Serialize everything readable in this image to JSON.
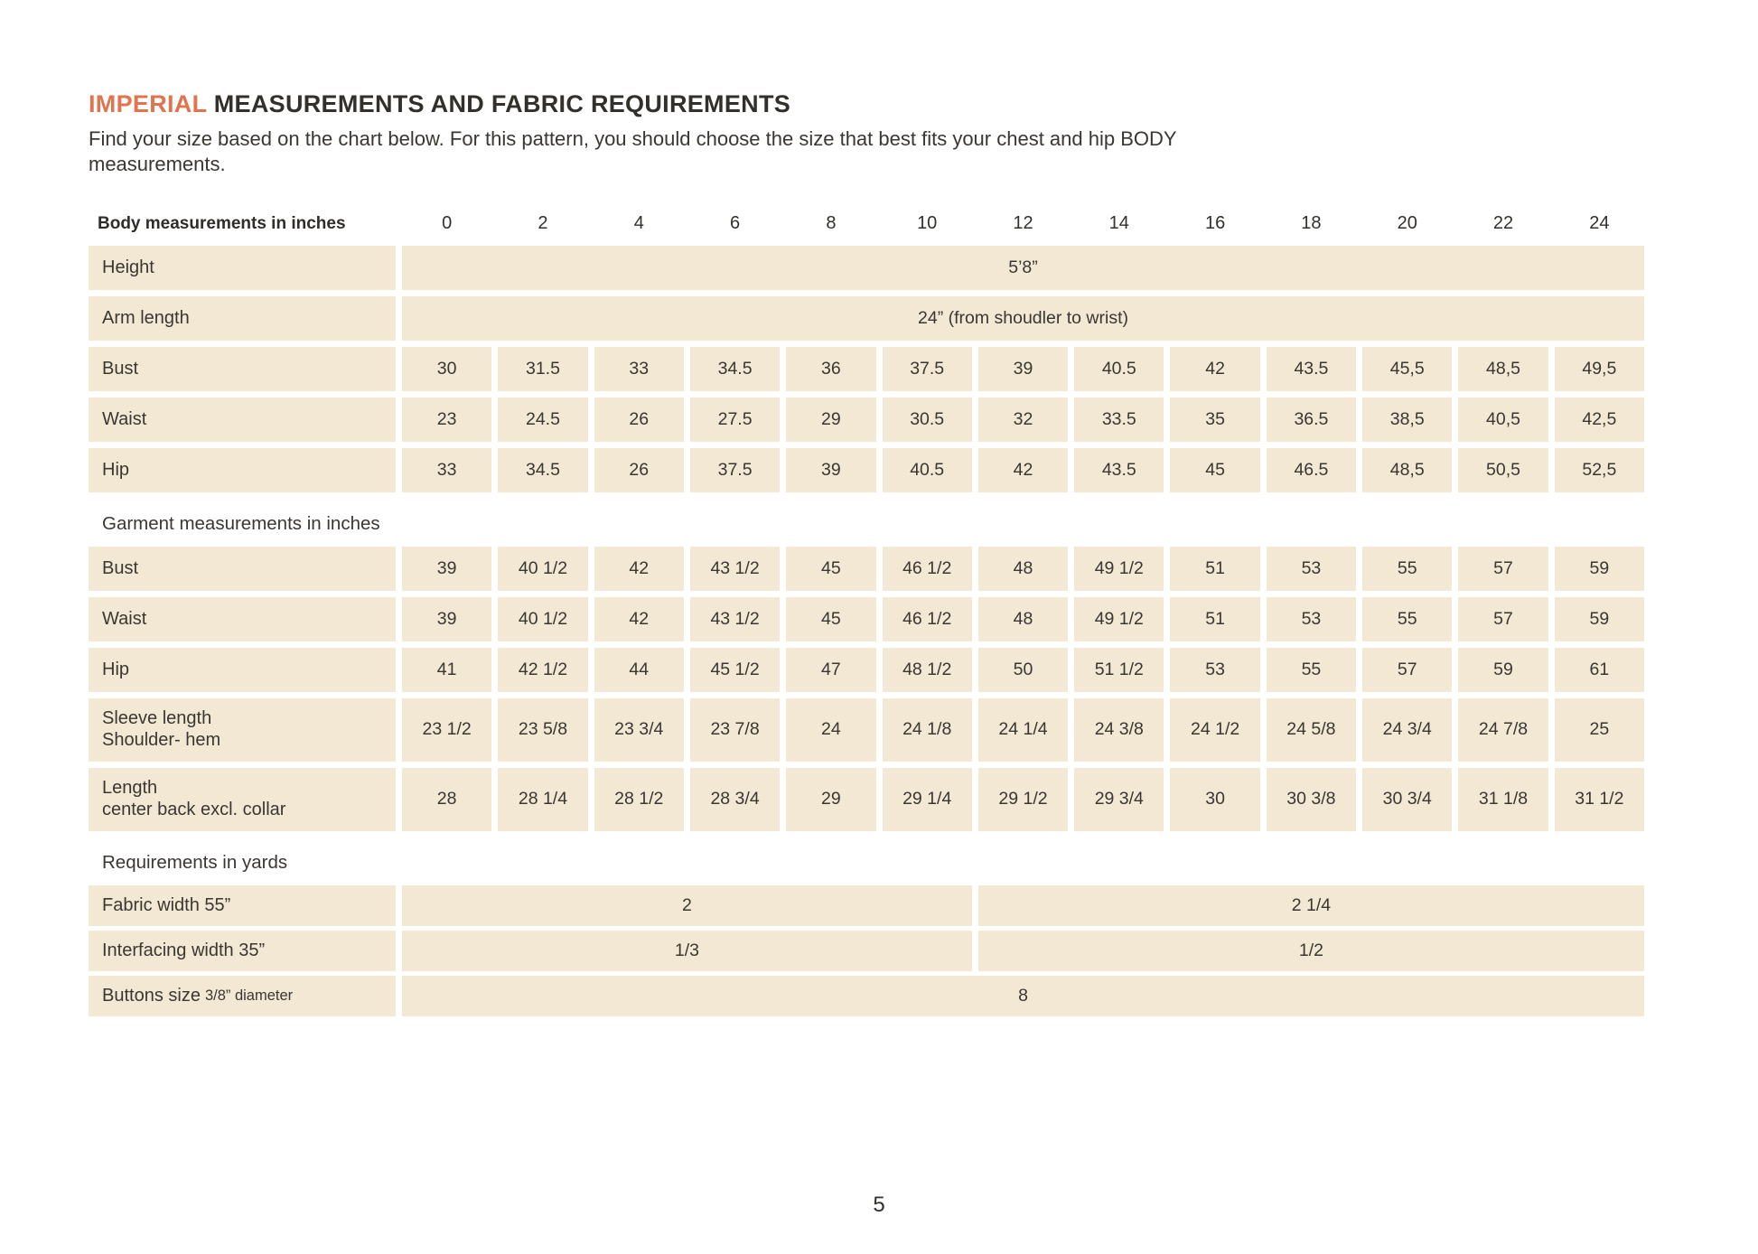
{
  "page": {
    "title_accent": "IMPERIAL",
    "title_rest": "MEASUREMENTS AND FABRIC REQUIREMENTS",
    "subtitle_line1": "Find your size based on the chart below. For this pattern, you should choose the size that best fits your chest and hip BODY",
    "subtitle_line2": "measurements.",
    "page_number": "5"
  },
  "colors": {
    "accent": "#E0744E",
    "cell_bg": "#F2E8D4",
    "text": "#35322E"
  },
  "table": {
    "header_label": "Body measurements in inches",
    "sizes": [
      "0",
      "2",
      "4",
      "6",
      "8",
      "10",
      "12",
      "14",
      "16",
      "18",
      "20",
      "22",
      "24"
    ],
    "full_span_rows": [
      {
        "label": "Height",
        "value": "5’8”"
      },
      {
        "label": "Arm length",
        "value": "24” (from shoudler to wrist)"
      }
    ],
    "body_rows": [
      {
        "label": "Bust",
        "values": [
          "30",
          "31.5",
          "33",
          "34.5",
          "36",
          "37.5",
          "39",
          "40.5",
          "42",
          "43.5",
          "45,5",
          "48,5",
          "49,5"
        ]
      },
      {
        "label": "Waist",
        "values": [
          "23",
          "24.5",
          "26",
          "27.5",
          "29",
          "30.5",
          "32",
          "33.5",
          "35",
          "36.5",
          "38,5",
          "40,5",
          "42,5"
        ]
      },
      {
        "label": "Hip",
        "values": [
          "33",
          "34.5",
          "26",
          "37.5",
          "39",
          "40.5",
          "42",
          "43.5",
          "45",
          "46.5",
          "48,5",
          "50,5",
          "52,5"
        ]
      }
    ],
    "garment_section_label": "Garment measurements in inches",
    "garment_rows": [
      {
        "label": "Bust",
        "values": [
          "39",
          "40 1/2",
          "42",
          "43 1/2",
          "45",
          "46 1/2",
          "48",
          "49 1/2",
          "51",
          "53",
          "55",
          "57",
          "59"
        ]
      },
      {
        "label": "Waist",
        "values": [
          "39",
          "40 1/2",
          "42",
          "43 1/2",
          "45",
          "46 1/2",
          "48",
          "49 1/2",
          "51",
          "53",
          "55",
          "57",
          "59"
        ]
      },
      {
        "label": "Hip",
        "values": [
          "41",
          "42 1/2",
          "44",
          "45 1/2",
          "47",
          "48 1/2",
          "50",
          "51 1/2",
          "53",
          "55",
          "57",
          "59",
          "61"
        ]
      },
      {
        "label": "Sleeve length",
        "label_line2": "Shoulder- hem",
        "values": [
          "23 1/2",
          "23 5/8",
          "23 3/4",
          "23 7/8",
          "24",
          "24 1/8",
          "24 1/4",
          "24 3/8",
          "24 1/2",
          "24 5/8",
          "24 3/4",
          "24 7/8",
          "25"
        ]
      },
      {
        "label": "Length",
        "label_line2": "center back excl. collar",
        "values": [
          "28",
          "28 1/4",
          "28 1/2",
          "28 3/4",
          "29",
          "29 1/4",
          "29 1/2",
          "29 3/4",
          "30",
          "30 3/8",
          "30 3/4",
          "31 1/8",
          "31 1/2"
        ]
      }
    ],
    "requirements_section_label": "Requirements in yards",
    "requirement_rows": [
      {
        "label": "Fabric width 55”",
        "cells": [
          {
            "text": "2",
            "span": 6
          },
          {
            "text": "2 1/4",
            "span": 7
          }
        ]
      },
      {
        "label": "Interfacing width 35”",
        "cells": [
          {
            "text": "1/3",
            "span": 6
          },
          {
            "text": "1/2",
            "span": 7
          }
        ]
      },
      {
        "label": "Buttons size",
        "label_small": "3/8” diameter",
        "cells": [
          {
            "text": "8",
            "span": 13
          }
        ]
      }
    ]
  }
}
